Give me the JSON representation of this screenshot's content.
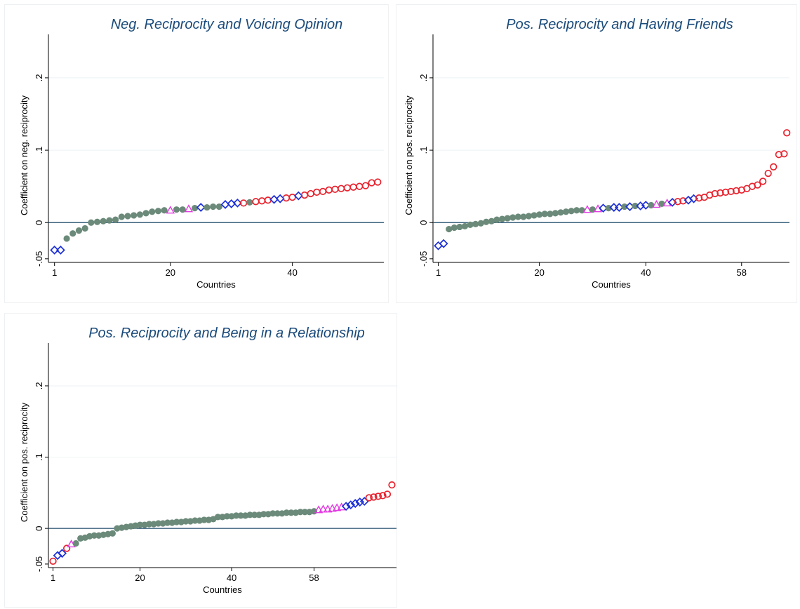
{
  "chart_data": [
    {
      "type": "scatter",
      "title": "Neg. Reciprocity and Voicing Opinion",
      "xlabel": "Countries",
      "ylabel": "Coefficient on neg. reciprocity",
      "xticks": [
        "1",
        "20",
        "40"
      ],
      "yticks": [
        "-.05",
        "0",
        ".1",
        ".2"
      ],
      "xlim": [
        0,
        55
      ],
      "ylim": [
        -0.055,
        0.26
      ],
      "reference_line": 0,
      "colors": {
        "diamond": "#1c2fd6",
        "triangle": "#e33be2",
        "dot": "#6b8a7a",
        "circle": "#e8232e",
        "refline": "#1e4a6a"
      },
      "x": [
        1,
        2,
        3,
        4,
        5,
        6,
        7,
        8,
        9,
        10,
        11,
        12,
        13,
        14,
        15,
        16,
        17,
        18,
        19,
        20,
        21,
        22,
        23,
        24,
        25,
        26,
        27,
        28,
        29,
        30,
        31,
        32,
        33,
        34,
        35,
        36,
        37,
        38,
        39,
        40,
        41,
        42,
        43,
        44,
        45,
        46,
        47,
        48,
        49,
        50,
        51,
        52,
        53,
        54
      ],
      "y": [
        -0.038,
        -0.038,
        -0.022,
        -0.015,
        -0.011,
        -0.008,
        0.0,
        0.001,
        0.002,
        0.003,
        0.004,
        0.008,
        0.009,
        0.01,
        0.011,
        0.013,
        0.015,
        0.016,
        0.017,
        0.017,
        0.018,
        0.018,
        0.019,
        0.02,
        0.021,
        0.021,
        0.022,
        0.022,
        0.025,
        0.026,
        0.027,
        0.027,
        0.028,
        0.029,
        0.03,
        0.031,
        0.032,
        0.033,
        0.034,
        0.035,
        0.037,
        0.038,
        0.04,
        0.042,
        0.043,
        0.045,
        0.046,
        0.047,
        0.048,
        0.049,
        0.05,
        0.051,
        0.055,
        0.056
      ],
      "markers": [
        "D",
        "D",
        "o",
        "o",
        "o",
        "o",
        "o",
        "o",
        "o",
        "o",
        "o",
        "o",
        "o",
        "o",
        "o",
        "o",
        "o",
        "o",
        "o",
        "^",
        "o",
        "o",
        "^",
        "o",
        "D",
        "o",
        "o",
        "o",
        "D",
        "D",
        "D",
        "c",
        "o",
        "c",
        "c",
        "c",
        "D",
        "D",
        "c",
        "c",
        "D",
        "c",
        "c",
        "c",
        "c",
        "c",
        "c",
        "c",
        "c",
        "c",
        "c",
        "c",
        "c",
        "c"
      ]
    },
    {
      "type": "scatter",
      "title": "Pos. Reciprocity and Having Friends",
      "xlabel": "Countries",
      "ylabel": "Coefficient on pos. reciprocity",
      "xticks": [
        "1",
        "20",
        "40",
        "58"
      ],
      "yticks": [
        "-.05",
        "0",
        ".1",
        ".2"
      ],
      "xlim": [
        0,
        67
      ],
      "ylim": [
        -0.055,
        0.26
      ],
      "reference_line": 0,
      "colors": {
        "diamond": "#1c2fd6",
        "triangle": "#e33be2",
        "dot": "#6b8a7a",
        "circle": "#e8232e",
        "refline": "#1e4a6a"
      },
      "x": [
        1,
        2,
        3,
        4,
        5,
        6,
        7,
        8,
        9,
        10,
        11,
        12,
        13,
        14,
        15,
        16,
        17,
        18,
        19,
        20,
        21,
        22,
        23,
        24,
        25,
        26,
        27,
        28,
        29,
        30,
        31,
        32,
        33,
        34,
        35,
        36,
        37,
        38,
        39,
        40,
        41,
        42,
        43,
        44,
        45,
        46,
        47,
        48,
        49,
        50,
        51,
        52,
        53,
        54,
        55,
        56,
        57,
        58,
        59,
        60,
        61,
        62,
        63,
        64,
        65,
        66
      ],
      "y": [
        -0.032,
        -0.029,
        -0.009,
        -0.007,
        -0.006,
        -0.005,
        -0.003,
        -0.002,
        -0.001,
        0.001,
        0.002,
        0.004,
        0.005,
        0.006,
        0.007,
        0.008,
        0.008,
        0.009,
        0.01,
        0.011,
        0.012,
        0.012,
        0.013,
        0.014,
        0.015,
        0.016,
        0.017,
        0.017,
        0.018,
        0.018,
        0.019,
        0.02,
        0.02,
        0.021,
        0.021,
        0.022,
        0.022,
        0.023,
        0.023,
        0.024,
        0.024,
        0.025,
        0.026,
        0.027,
        0.028,
        0.029,
        0.03,
        0.031,
        0.033,
        0.034,
        0.035,
        0.038,
        0.04,
        0.041,
        0.042,
        0.043,
        0.044,
        0.045,
        0.047,
        0.05,
        0.052,
        0.057,
        0.068,
        0.077,
        0.094,
        0.095
      ],
      "markers": [
        "D",
        "D",
        "o",
        "o",
        "o",
        "o",
        "o",
        "o",
        "o",
        "o",
        "o",
        "o",
        "o",
        "o",
        "o",
        "o",
        "o",
        "o",
        "o",
        "o",
        "o",
        "o",
        "o",
        "o",
        "o",
        "o",
        "o",
        "o",
        "^",
        "o",
        "^",
        "D",
        "o",
        "D",
        "D",
        "o",
        "D",
        "o",
        "D",
        "D",
        "o",
        "^",
        "o",
        "^",
        "D",
        "c",
        "c",
        "D",
        "D",
        "c",
        "c",
        "c",
        "c",
        "c",
        "c",
        "c",
        "c",
        "c",
        "c",
        "c",
        "c",
        "c",
        "c",
        "c",
        "c",
        "c"
      ],
      "outlier": {
        "x": 66.5,
        "y": 0.124,
        "marker": "c"
      }
    },
    {
      "type": "scatter",
      "title": "Pos. Reciprocity and Being in a Relationship",
      "xlabel": "Countries",
      "ylabel": "Coefficient on pos. reciprocity",
      "xticks": [
        "1",
        "20",
        "40",
        "58"
      ],
      "yticks": [
        "-.05",
        "0",
        ".1",
        ".2"
      ],
      "xlim": [
        0,
        76
      ],
      "ylim": [
        -0.055,
        0.26
      ],
      "reference_line": 0,
      "colors": {
        "diamond": "#1c2fd6",
        "triangle": "#e33be2",
        "dot": "#6b8a7a",
        "circle": "#e8232e",
        "refline": "#1e4a6a"
      },
      "x": [
        1,
        2,
        3,
        4,
        5,
        6,
        7,
        8,
        9,
        10,
        11,
        12,
        13,
        14,
        15,
        16,
        17,
        18,
        19,
        20,
        21,
        22,
        23,
        24,
        25,
        26,
        27,
        28,
        29,
        30,
        31,
        32,
        33,
        34,
        35,
        36,
        37,
        38,
        39,
        40,
        41,
        42,
        43,
        44,
        45,
        46,
        47,
        48,
        49,
        50,
        51,
        52,
        53,
        54,
        55,
        56,
        57,
        58,
        59,
        60,
        61,
        62,
        63,
        64,
        65,
        66,
        67,
        68,
        69,
        70,
        71,
        72,
        73,
        74,
        75
      ],
      "y": [
        -0.046,
        -0.038,
        -0.035,
        -0.028,
        -0.022,
        -0.021,
        -0.014,
        -0.013,
        -0.011,
        -0.01,
        -0.01,
        -0.009,
        -0.008,
        -0.007,
        0.0,
        0.001,
        0.002,
        0.003,
        0.004,
        0.005,
        0.005,
        0.006,
        0.006,
        0.007,
        0.007,
        0.008,
        0.008,
        0.009,
        0.009,
        0.01,
        0.01,
        0.011,
        0.011,
        0.012,
        0.012,
        0.013,
        0.016,
        0.016,
        0.017,
        0.017,
        0.018,
        0.018,
        0.018,
        0.019,
        0.019,
        0.019,
        0.02,
        0.02,
        0.021,
        0.021,
        0.021,
        0.022,
        0.022,
        0.022,
        0.023,
        0.023,
        0.023,
        0.024,
        0.026,
        0.027,
        0.027,
        0.028,
        0.029,
        0.03,
        0.031,
        0.033,
        0.035,
        0.037,
        0.038,
        0.043,
        0.044,
        0.045,
        0.046,
        0.048,
        0.061
      ],
      "markers": [
        "c",
        "D",
        "D",
        "c",
        "^",
        "o",
        "o",
        "o",
        "o",
        "o",
        "o",
        "o",
        "o",
        "o",
        "o",
        "o",
        "o",
        "o",
        "o",
        "o",
        "o",
        "o",
        "o",
        "o",
        "o",
        "o",
        "o",
        "o",
        "o",
        "o",
        "o",
        "o",
        "o",
        "o",
        "o",
        "o",
        "o",
        "o",
        "o",
        "o",
        "o",
        "o",
        "o",
        "o",
        "o",
        "o",
        "o",
        "o",
        "o",
        "o",
        "o",
        "o",
        "o",
        "o",
        "o",
        "o",
        "o",
        "o",
        "^",
        "^",
        "^",
        "^",
        "^",
        "^",
        "D",
        "D",
        "D",
        "D",
        "D",
        "c",
        "c",
        "c",
        "c",
        "c",
        "c"
      ]
    }
  ]
}
